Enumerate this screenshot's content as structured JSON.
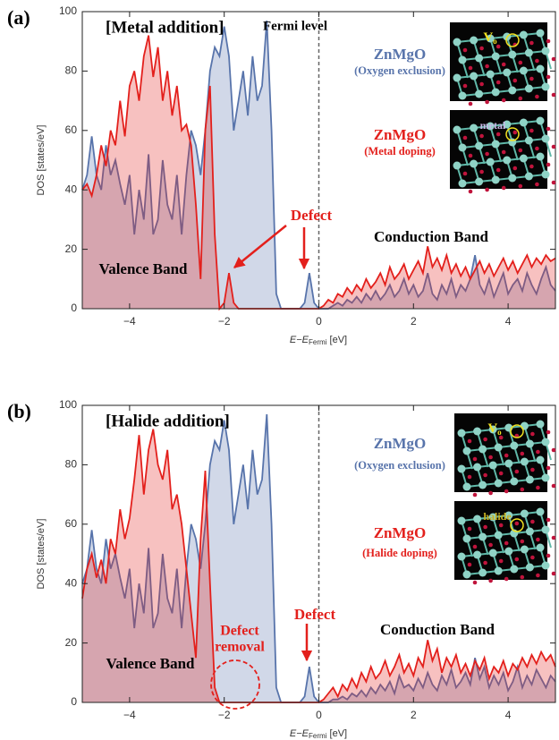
{
  "chart_data": [
    {
      "type": "area",
      "panel_label": "(a)",
      "title": "[Metal addition]",
      "vline": 0,
      "vline_label": "Fermi level",
      "ylabel": "DOS [states/eV]",
      "xlabel": {
        "main": "E−E",
        "sub": "Fermi",
        "unit": " [eV]"
      },
      "xlim": [
        -5,
        5
      ],
      "ylim": [
        0,
        100
      ],
      "xticks": [
        {
          "value": -4,
          "label": "−4"
        },
        {
          "value": -2,
          "label": "−2"
        },
        0,
        2,
        4
      ],
      "yticks": [
        0,
        20,
        40,
        60,
        80,
        100
      ],
      "annotations": {
        "defect": "Defect",
        "conduction": "Conduction Band",
        "valence": "Valence Band"
      },
      "insets": [
        {
          "label": "V",
          "sub": "o"
        },
        {
          "label": "metal"
        }
      ],
      "x": [
        -5,
        -4.9,
        -4.8,
        -4.7,
        -4.6,
        -4.5,
        -4.4,
        -4.3,
        -4.2,
        -4.1,
        -4,
        -3.9,
        -3.8,
        -3.7,
        -3.6,
        -3.5,
        -3.4,
        -3.3,
        -3.2,
        -3.1,
        -3,
        -2.9,
        -2.8,
        -2.7,
        -2.6,
        -2.5,
        -2.4,
        -2.3,
        -2.2,
        -2.1,
        -2,
        -1.9,
        -1.8,
        -1.7,
        -1.6,
        -1.5,
        -1.4,
        -1.3,
        -1.2,
        -1.1,
        -1,
        -0.9,
        -0.8,
        -0.7,
        -0.6,
        -0.5,
        -0.4,
        -0.3,
        -0.2,
        -0.1,
        0,
        0.1,
        0.2,
        0.3,
        0.4,
        0.5,
        0.6,
        0.7,
        0.8,
        0.9,
        1,
        1.1,
        1.2,
        1.3,
        1.4,
        1.5,
        1.6,
        1.7,
        1.8,
        1.9,
        2,
        2.1,
        2.2,
        2.3,
        2.4,
        2.5,
        2.6,
        2.7,
        2.8,
        2.9,
        3,
        3.1,
        3.2,
        3.3,
        3.4,
        3.5,
        3.6,
        3.7,
        3.8,
        3.9,
        4,
        4.1,
        4.2,
        4.3,
        4.4,
        4.5,
        4.6,
        4.7,
        4.8,
        4.9,
        5
      ],
      "series": [
        {
          "name": "ZnMgO",
          "label": "(Oxygen exclusion)",
          "color": "#5874ab",
          "values": [
            40,
            45,
            58,
            45,
            40,
            55,
            45,
            50,
            42,
            35,
            45,
            25,
            40,
            30,
            52,
            25,
            30,
            50,
            35,
            30,
            45,
            25,
            45,
            60,
            55,
            45,
            60,
            80,
            88,
            85,
            95,
            85,
            60,
            70,
            80,
            65,
            85,
            70,
            75,
            97,
            60,
            5,
            0,
            0,
            0,
            0,
            0,
            2,
            12,
            2,
            0,
            0,
            0,
            1,
            2,
            1,
            3,
            2,
            4,
            2,
            5,
            3,
            6,
            3,
            5,
            8,
            4,
            6,
            10,
            5,
            8,
            4,
            6,
            12,
            5,
            3,
            8,
            5,
            10,
            4,
            8,
            6,
            10,
            18,
            8,
            5,
            10,
            4,
            8,
            12,
            5,
            8,
            10,
            6,
            12,
            8,
            5,
            10,
            14,
            8,
            6
          ]
        },
        {
          "name": "ZnMgO",
          "label": "(Metal doping)",
          "color": "#e3201c",
          "values": [
            40,
            42,
            38,
            45,
            55,
            48,
            60,
            55,
            70,
            58,
            75,
            80,
            70,
            85,
            92,
            78,
            88,
            70,
            80,
            65,
            75,
            60,
            62,
            55,
            35,
            10,
            60,
            75,
            25,
            0,
            2,
            12,
            2,
            0,
            0,
            0,
            0,
            0,
            0,
            0,
            0,
            0,
            0,
            0,
            0,
            0,
            0,
            0,
            0,
            0,
            0,
            1,
            3,
            2,
            5,
            4,
            7,
            5,
            8,
            6,
            10,
            7,
            9,
            12,
            8,
            14,
            10,
            12,
            15,
            10,
            13,
            16,
            12,
            21,
            14,
            17,
            13,
            18,
            12,
            15,
            11,
            14,
            10,
            13,
            16,
            12,
            15,
            11,
            14,
            17,
            13,
            16,
            12,
            15,
            18,
            14,
            17,
            15,
            18,
            16,
            17
          ]
        }
      ]
    },
    {
      "type": "area",
      "panel_label": "(b)",
      "title": "[Halide addition]",
      "vline": 0,
      "ylabel": "DOS [states/eV]",
      "xlabel": {
        "main": "E−E",
        "sub": "Fermi",
        "unit": " [eV]"
      },
      "xlim": [
        -5,
        5
      ],
      "ylim": [
        0,
        100
      ],
      "xticks": [
        {
          "value": -4,
          "label": "−4"
        },
        {
          "value": -2,
          "label": "−2"
        },
        0,
        2,
        4
      ],
      "yticks": [
        0,
        20,
        40,
        60,
        80,
        100
      ],
      "annotations": {
        "defect": "Defect",
        "removal": [
          "Defect",
          "removal"
        ],
        "conduction": "Conduction Band",
        "valence": "Valence Band"
      },
      "insets": [
        {
          "label": "V",
          "sub": "o"
        },
        {
          "label": "halide"
        }
      ],
      "x": [
        -5,
        -4.9,
        -4.8,
        -4.7,
        -4.6,
        -4.5,
        -4.4,
        -4.3,
        -4.2,
        -4.1,
        -4,
        -3.9,
        -3.8,
        -3.7,
        -3.6,
        -3.5,
        -3.4,
        -3.3,
        -3.2,
        -3.1,
        -3,
        -2.9,
        -2.8,
        -2.7,
        -2.6,
        -2.5,
        -2.4,
        -2.3,
        -2.2,
        -2.1,
        -2,
        -1.9,
        -1.8,
        -1.7,
        -1.6,
        -1.5,
        -1.4,
        -1.3,
        -1.2,
        -1.1,
        -1,
        -0.9,
        -0.8,
        -0.7,
        -0.6,
        -0.5,
        -0.4,
        -0.3,
        -0.2,
        -0.1,
        0,
        0.1,
        0.2,
        0.3,
        0.4,
        0.5,
        0.6,
        0.7,
        0.8,
        0.9,
        1,
        1.1,
        1.2,
        1.3,
        1.4,
        1.5,
        1.6,
        1.7,
        1.8,
        1.9,
        2,
        2.1,
        2.2,
        2.3,
        2.4,
        2.5,
        2.6,
        2.7,
        2.8,
        2.9,
        3,
        3.1,
        3.2,
        3.3,
        3.4,
        3.5,
        3.6,
        3.7,
        3.8,
        3.9,
        4,
        4.1,
        4.2,
        4.3,
        4.4,
        4.5,
        4.6,
        4.7,
        4.8,
        4.9,
        5
      ],
      "series": [
        {
          "name": "ZnMgO",
          "label": "(Oxygen exclusion)",
          "color": "#5874ab",
          "values": [
            40,
            45,
            58,
            45,
            40,
            55,
            45,
            50,
            42,
            35,
            45,
            25,
            40,
            30,
            52,
            25,
            30,
            50,
            35,
            30,
            45,
            25,
            45,
            60,
            55,
            45,
            60,
            80,
            88,
            85,
            95,
            85,
            60,
            70,
            80,
            65,
            85,
            70,
            75,
            97,
            60,
            5,
            0,
            0,
            0,
            0,
            0,
            2,
            12,
            2,
            0,
            0,
            0,
            1,
            1,
            2,
            1,
            3,
            2,
            4,
            2,
            5,
            3,
            6,
            4,
            7,
            3,
            9,
            5,
            6,
            4,
            8,
            5,
            10,
            6,
            4,
            9,
            6,
            11,
            5,
            7,
            10,
            6,
            15,
            8,
            12,
            5,
            9,
            6,
            10,
            4,
            7,
            12,
            5,
            9,
            6,
            11,
            8,
            5,
            9,
            7
          ]
        },
        {
          "name": "ZnMgO",
          "label": "(Halide doping)",
          "color": "#e3201c",
          "values": [
            35,
            45,
            50,
            42,
            48,
            40,
            55,
            50,
            65,
            55,
            62,
            75,
            90,
            70,
            85,
            92,
            80,
            75,
            85,
            65,
            70,
            60,
            45,
            30,
            15,
            55,
            78,
            40,
            5,
            0,
            0,
            0,
            0,
            0,
            0,
            0,
            0,
            0,
            0,
            0,
            0,
            0,
            0,
            0,
            0,
            0,
            0,
            0,
            0,
            0,
            0,
            1,
            3,
            5,
            2,
            6,
            4,
            8,
            5,
            10,
            7,
            12,
            8,
            10,
            14,
            9,
            12,
            16,
            10,
            13,
            9,
            15,
            12,
            21,
            14,
            18,
            10,
            15,
            12,
            16,
            10,
            13,
            9,
            14,
            11,
            15,
            8,
            12,
            10,
            14,
            9,
            13,
            11,
            15,
            12,
            16,
            13,
            17,
            14,
            16,
            12
          ]
        }
      ]
    }
  ]
}
